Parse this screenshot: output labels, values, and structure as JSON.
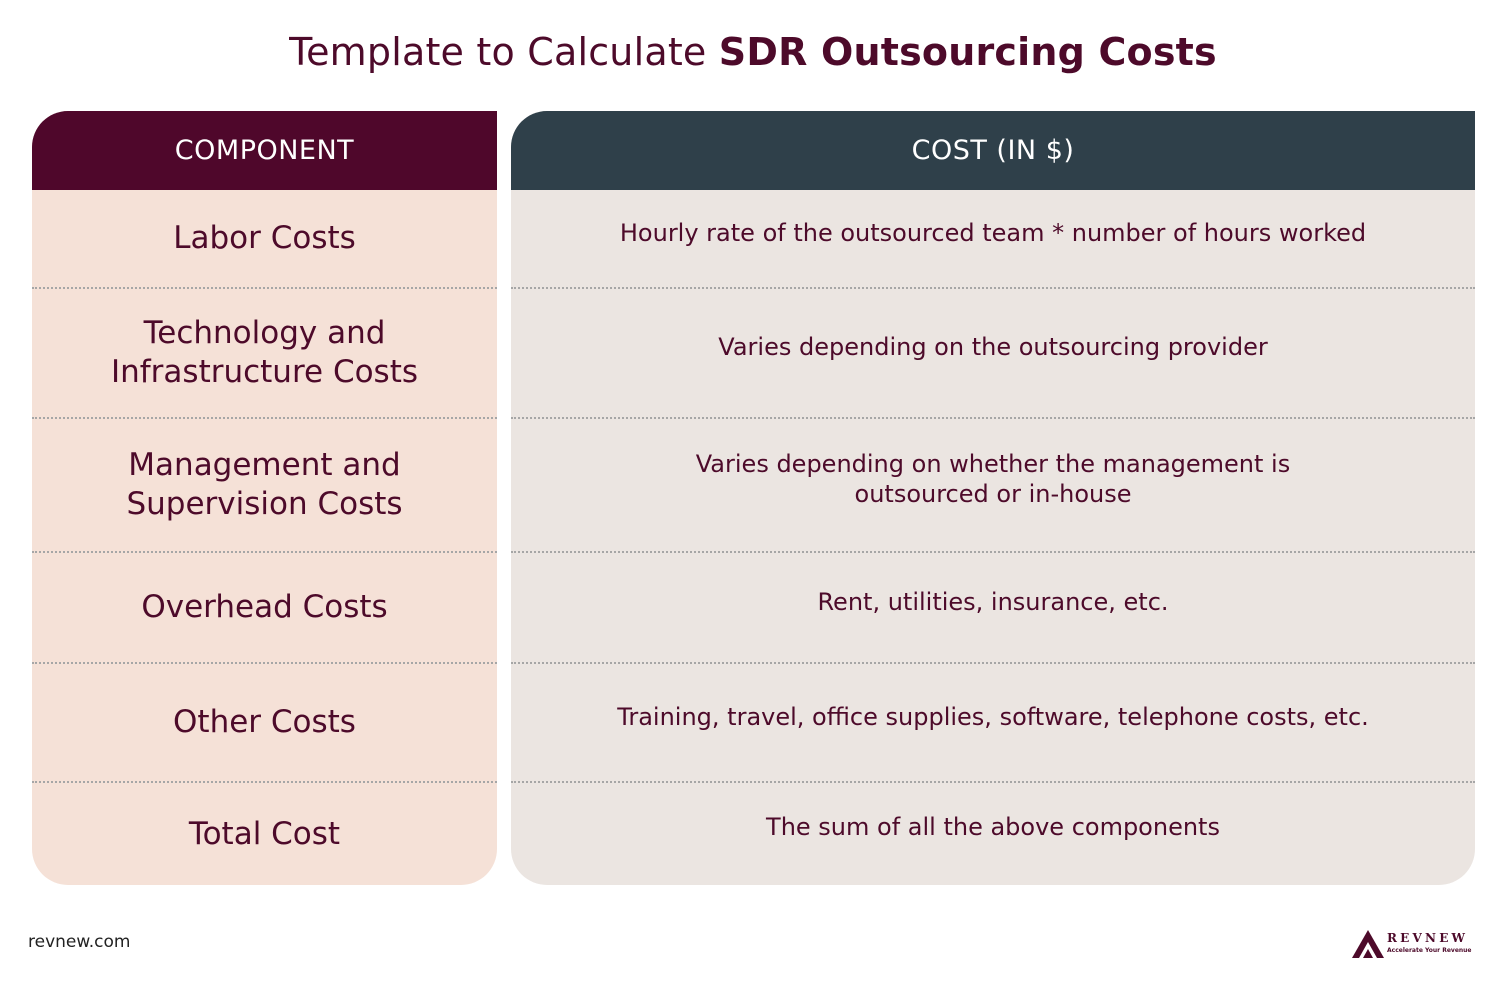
{
  "title": {
    "regular": "Template to Calculate ",
    "strong": "SDR Outsourcing Costs"
  },
  "table": {
    "headers": {
      "component": "COMPONENT",
      "cost": "COST (IN $)"
    },
    "rows": [
      {
        "component": "Labor Costs",
        "cost": "Hourly rate of the outsourced team * number of hours worked"
      },
      {
        "component": "Technology and Infrastructure Costs",
        "cost": "Varies depending on the outsourcing provider"
      },
      {
        "component": "Management and Supervision Costs",
        "cost": "Varies depending on whether the management is outsourced or in-house"
      },
      {
        "component": "Overhead Costs",
        "cost": "Rent, utilities, insurance, etc."
      },
      {
        "component": "Other Costs",
        "cost": "Training, travel, office supplies, software, telephone costs, etc."
      },
      {
        "component": "Total Cost",
        "cost": "The sum of all the above components"
      }
    ]
  },
  "footer": {
    "website": "revnew.com",
    "logo_name": "REVNEW",
    "logo_tagline": "Accelerate Your Revenue"
  },
  "colors": {
    "maroon": "#4f072b",
    "slate": "#2f404a",
    "peach": "#f5e1d7",
    "light_gray": "#ebe5e1"
  }
}
